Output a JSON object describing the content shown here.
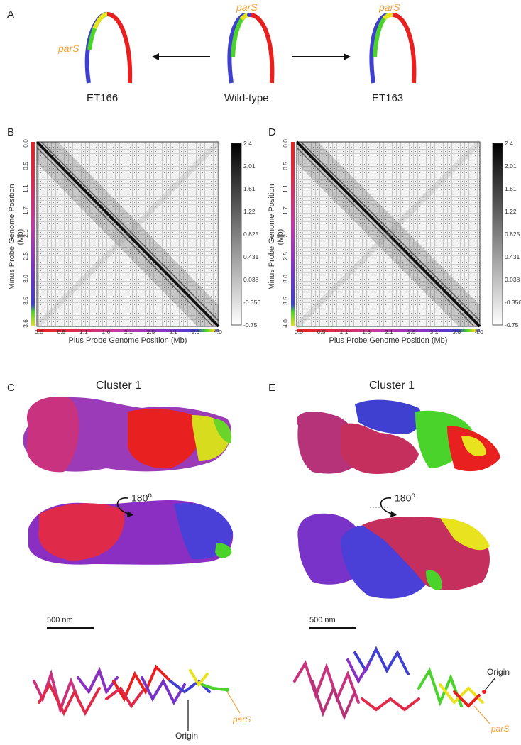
{
  "panels": {
    "A": {
      "letter": "A",
      "strains": [
        {
          "label": "ET166",
          "pars": "parS"
        },
        {
          "label": "Wild-type",
          "pars": "parS"
        },
        {
          "label": "ET163",
          "pars": "parS"
        }
      ]
    },
    "B": {
      "letter": "B",
      "ylabel": "Minus Probe Genome Position (Mb)",
      "xlabel": "Plus Probe Genome Position (Mb)",
      "yticks": [
        "0.0",
        "0.5",
        "1.1",
        "1.7",
        "2.1",
        "2.5",
        "3.0",
        "3.5",
        "3.6"
      ],
      "xticks": [
        "0.0",
        "0.5",
        "1.1",
        "1.6",
        "2.1",
        "2.5",
        "3.1",
        "3.6",
        "4.0"
      ],
      "colorbar": [
        "2.4",
        "2.01",
        "1.61",
        "1.22",
        "0.825",
        "0.431",
        "0.038",
        "-0.356",
        "-0.75"
      ]
    },
    "D": {
      "letter": "D",
      "ylabel": "Minus Probe Genome Position (Mb)",
      "xlabel": "Plus Probe Genome Position (Mb)",
      "yticks": [
        "0.0",
        "0.5",
        "1.1",
        "1.7",
        "2.1",
        "2.5",
        "3.0",
        "3.5",
        "4.0"
      ],
      "xticks": [
        "0.0",
        "0.5",
        "1.1",
        "1.6",
        "2.1",
        "2.5",
        "3.1",
        "3.6",
        "4.0"
      ],
      "colorbar": [
        "2.4",
        "2.01",
        "1.61",
        "1.22",
        "0.825",
        "0.431",
        "0.038",
        "-0.356",
        "-0.75"
      ]
    },
    "C": {
      "letter": "C",
      "title": "Cluster 1",
      "rotation": "180",
      "rotation_unit": "o",
      "scale": "500 nm",
      "origin": "Origin",
      "pars": "parS"
    },
    "E": {
      "letter": "E",
      "title": "Cluster 1",
      "rotation": "180",
      "rotation_unit": "o",
      "scale": "500 nm",
      "origin": "Origin",
      "pars": "parS"
    }
  },
  "colors": {
    "red": "#e8201f",
    "purple": "#8a2fc2",
    "blue": "#3f3fd0",
    "green": "#4ad32a",
    "yellow": "#e8e21f",
    "pars_orange": "#f2a33a"
  }
}
